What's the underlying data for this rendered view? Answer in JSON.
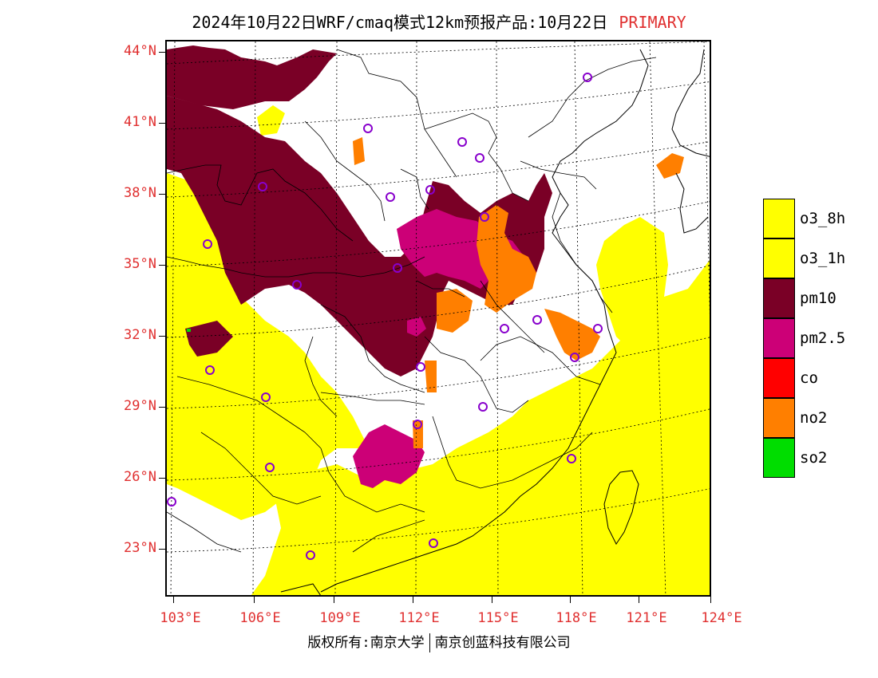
{
  "title": {
    "main": "2024年10月22日WRF/cmaq模式12km预报产品:10月22日",
    "tag": "PRIMARY",
    "tag_color": "#e03030"
  },
  "axes": {
    "latitude_labels": [
      "44°N",
      "41°N",
      "38°N",
      "35°N",
      "32°N",
      "29°N",
      "26°N",
      "23°N"
    ],
    "longitude_labels": [
      "103°E",
      "106°E",
      "109°E",
      "112°E",
      "115°E",
      "118°E",
      "121°E",
      "124°E"
    ],
    "label_color": "#e03030"
  },
  "legend": [
    {
      "label": "o3_8h",
      "color": "#ffff00"
    },
    {
      "label": "o3_1h",
      "color": "#ffff00"
    },
    {
      "label": "pm10",
      "color": "#7a0026"
    },
    {
      "label": "pm2.5",
      "color": "#cc0077"
    },
    {
      "label": "co",
      "color": "#ff0000"
    },
    {
      "label": "no2",
      "color": "#ff7f00"
    },
    {
      "label": "so2",
      "color": "#00dd00"
    }
  ],
  "credit": {
    "left": "版权所有:南京大学",
    "right": "南京创蓝科技有限公司"
  },
  "station_marker_color": "#8800cc"
}
